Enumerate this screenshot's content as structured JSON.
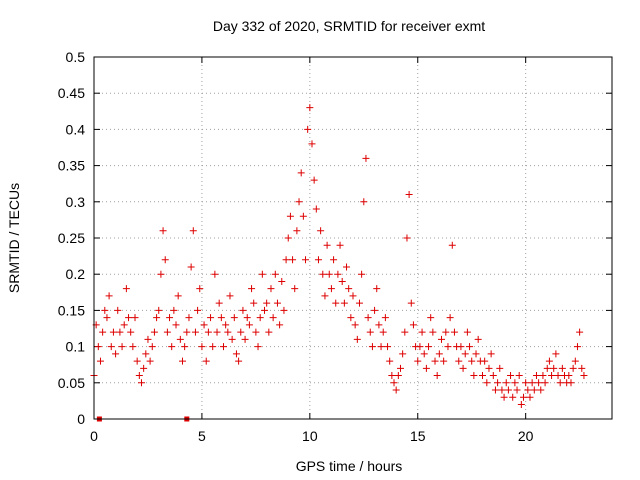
{
  "chart_data": {
    "type": "scatter",
    "title": "Day 332 of 2020, SRMTID for receiver exmt",
    "xlabel": "GPS time / hours",
    "ylabel": "SRMTID / TECUs",
    "xlim": [
      0,
      24
    ],
    "ylim": [
      0,
      0.5
    ],
    "xticks": [
      0,
      5,
      10,
      15,
      20
    ],
    "xtick_labels": [
      "0",
      "5",
      "10",
      "15",
      "20"
    ],
    "yticks": [
      0,
      0.05,
      0.1,
      0.15,
      0.2,
      0.25,
      0.3,
      0.35,
      0.4,
      0.45,
      0.5
    ],
    "ytick_labels": [
      "0",
      "0.05",
      "0.1",
      "0.15",
      "0.2",
      "0.25",
      "0.3",
      "0.35",
      "0.4",
      "0.45",
      "0.5"
    ],
    "grid": true,
    "marker": "+",
    "color": "#dd0000",
    "series": [
      {
        "name": "SRMTID",
        "points": [
          [
            0.0,
            0.06
          ],
          [
            0.1,
            0.13
          ],
          [
            0.2,
            0.1
          ],
          [
            0.3,
            0.08
          ],
          [
            0.4,
            0.12
          ],
          [
            0.5,
            0.15
          ],
          [
            0.6,
            0.14
          ],
          [
            0.7,
            0.17
          ],
          [
            0.8,
            0.1
          ],
          [
            0.9,
            0.12
          ],
          [
            1.0,
            0.09
          ],
          [
            1.1,
            0.15
          ],
          [
            1.2,
            0.12
          ],
          [
            1.3,
            0.1
          ],
          [
            1.4,
            0.13
          ],
          [
            1.5,
            0.18
          ],
          [
            1.6,
            0.14
          ],
          [
            1.7,
            0.12
          ],
          [
            1.8,
            0.1
          ],
          [
            1.9,
            0.14
          ],
          [
            2.0,
            0.08
          ],
          [
            2.1,
            0.06
          ],
          [
            2.2,
            0.05
          ],
          [
            2.3,
            0.07
          ],
          [
            2.4,
            0.09
          ],
          [
            2.5,
            0.11
          ],
          [
            2.6,
            0.08
          ],
          [
            2.7,
            0.1
          ],
          [
            2.8,
            0.12
          ],
          [
            2.9,
            0.14
          ],
          [
            3.0,
            0.15
          ],
          [
            3.1,
            0.2
          ],
          [
            3.2,
            0.26
          ],
          [
            3.3,
            0.22
          ],
          [
            3.4,
            0.12
          ],
          [
            3.5,
            0.14
          ],
          [
            3.6,
            0.1
          ],
          [
            3.7,
            0.15
          ],
          [
            3.8,
            0.13
          ],
          [
            3.9,
            0.17
          ],
          [
            4.0,
            0.11
          ],
          [
            4.1,
            0.08
          ],
          [
            4.2,
            0.1
          ],
          [
            4.3,
            0.12
          ],
          [
            4.4,
            0.14
          ],
          [
            4.5,
            0.21
          ],
          [
            4.6,
            0.26
          ],
          [
            4.7,
            0.12
          ],
          [
            4.8,
            0.15
          ],
          [
            4.9,
            0.18
          ],
          [
            5.0,
            0.1
          ],
          [
            5.1,
            0.13
          ],
          [
            5.2,
            0.08
          ],
          [
            5.3,
            0.12
          ],
          [
            5.4,
            0.14
          ],
          [
            5.5,
            0.1
          ],
          [
            5.6,
            0.2
          ],
          [
            5.7,
            0.12
          ],
          [
            5.8,
            0.16
          ],
          [
            5.9,
            0.14
          ],
          [
            6.0,
            0.1
          ],
          [
            6.1,
            0.13
          ],
          [
            6.2,
            0.12
          ],
          [
            6.3,
            0.17
          ],
          [
            6.4,
            0.11
          ],
          [
            6.5,
            0.14
          ],
          [
            6.6,
            0.09
          ],
          [
            6.7,
            0.08
          ],
          [
            6.8,
            0.12
          ],
          [
            6.9,
            0.15
          ],
          [
            7.0,
            0.11
          ],
          [
            7.1,
            0.14
          ],
          [
            7.2,
            0.13
          ],
          [
            7.3,
            0.18
          ],
          [
            7.4,
            0.16
          ],
          [
            7.5,
            0.12
          ],
          [
            7.6,
            0.1
          ],
          [
            7.7,
            0.14
          ],
          [
            7.8,
            0.2
          ],
          [
            7.9,
            0.15
          ],
          [
            8.0,
            0.16
          ],
          [
            8.1,
            0.12
          ],
          [
            8.2,
            0.18
          ],
          [
            8.3,
            0.14
          ],
          [
            8.4,
            0.2
          ],
          [
            8.5,
            0.16
          ],
          [
            8.6,
            0.13
          ],
          [
            8.7,
            0.19
          ],
          [
            8.8,
            0.15
          ],
          [
            8.9,
            0.22
          ],
          [
            9.0,
            0.25
          ],
          [
            9.1,
            0.28
          ],
          [
            9.2,
            0.22
          ],
          [
            9.3,
            0.18
          ],
          [
            9.4,
            0.26
          ],
          [
            9.5,
            0.3
          ],
          [
            9.6,
            0.34
          ],
          [
            9.7,
            0.28
          ],
          [
            9.8,
            0.22
          ],
          [
            9.9,
            0.4
          ],
          [
            10.0,
            0.43
          ],
          [
            10.1,
            0.38
          ],
          [
            10.2,
            0.33
          ],
          [
            10.3,
            0.29
          ],
          [
            10.4,
            0.22
          ],
          [
            10.5,
            0.26
          ],
          [
            10.6,
            0.2
          ],
          [
            10.7,
            0.17
          ],
          [
            10.8,
            0.24
          ],
          [
            10.9,
            0.2
          ],
          [
            11.0,
            0.18
          ],
          [
            11.1,
            0.22
          ],
          [
            11.2,
            0.16
          ],
          [
            11.3,
            0.2
          ],
          [
            11.4,
            0.24
          ],
          [
            11.5,
            0.19
          ],
          [
            11.6,
            0.16
          ],
          [
            11.7,
            0.21
          ],
          [
            11.8,
            0.18
          ],
          [
            11.9,
            0.14
          ],
          [
            12.0,
            0.17
          ],
          [
            12.1,
            0.13
          ],
          [
            12.2,
            0.11
          ],
          [
            12.3,
            0.16
          ],
          [
            12.4,
            0.2
          ],
          [
            12.5,
            0.3
          ],
          [
            12.6,
            0.36
          ],
          [
            12.7,
            0.14
          ],
          [
            12.8,
            0.12
          ],
          [
            12.9,
            0.1
          ],
          [
            13.0,
            0.15
          ],
          [
            13.1,
            0.18
          ],
          [
            13.2,
            0.13
          ],
          [
            13.3,
            0.1
          ],
          [
            13.4,
            0.12
          ],
          [
            13.5,
            0.14
          ],
          [
            13.6,
            0.1
          ],
          [
            13.7,
            0.08
          ],
          [
            13.8,
            0.06
          ],
          [
            13.9,
            0.05
          ],
          [
            14.0,
            0.04
          ],
          [
            14.1,
            0.06
          ],
          [
            14.2,
            0.07
          ],
          [
            14.3,
            0.09
          ],
          [
            14.4,
            0.12
          ],
          [
            14.5,
            0.25
          ],
          [
            14.6,
            0.31
          ],
          [
            14.7,
            0.16
          ],
          [
            14.8,
            0.13
          ],
          [
            14.9,
            0.1
          ],
          [
            15.0,
            0.08
          ],
          [
            15.1,
            0.1
          ],
          [
            15.2,
            0.12
          ],
          [
            15.3,
            0.09
          ],
          [
            15.4,
            0.07
          ],
          [
            15.5,
            0.1
          ],
          [
            15.6,
            0.14
          ],
          [
            15.7,
            0.12
          ],
          [
            15.8,
            0.08
          ],
          [
            15.9,
            0.06
          ],
          [
            16.0,
            0.09
          ],
          [
            16.1,
            0.11
          ],
          [
            16.2,
            0.08
          ],
          [
            16.3,
            0.12
          ],
          [
            16.4,
            0.1
          ],
          [
            16.5,
            0.14
          ],
          [
            16.6,
            0.24
          ],
          [
            16.7,
            0.12
          ],
          [
            16.8,
            0.1
          ],
          [
            16.9,
            0.08
          ],
          [
            17.0,
            0.1
          ],
          [
            17.1,
            0.07
          ],
          [
            17.2,
            0.09
          ],
          [
            17.3,
            0.12
          ],
          [
            17.4,
            0.1
          ],
          [
            17.5,
            0.08
          ],
          [
            17.6,
            0.06
          ],
          [
            17.7,
            0.09
          ],
          [
            17.8,
            0.11
          ],
          [
            17.9,
            0.08
          ],
          [
            18.0,
            0.06
          ],
          [
            18.1,
            0.08
          ],
          [
            18.2,
            0.05
          ],
          [
            18.3,
            0.07
          ],
          [
            18.4,
            0.09
          ],
          [
            18.5,
            0.06
          ],
          [
            18.6,
            0.04
          ],
          [
            18.7,
            0.05
          ],
          [
            18.8,
            0.07
          ],
          [
            18.9,
            0.04
          ],
          [
            19.0,
            0.03
          ],
          [
            19.1,
            0.05
          ],
          [
            19.2,
            0.04
          ],
          [
            19.3,
            0.06
          ],
          [
            19.4,
            0.03
          ],
          [
            19.5,
            0.05
          ],
          [
            19.6,
            0.04
          ],
          [
            19.7,
            0.06
          ],
          [
            19.8,
            0.02
          ],
          [
            19.9,
            0.03
          ],
          [
            20.0,
            0.05
          ],
          [
            20.1,
            0.04
          ],
          [
            20.2,
            0.03
          ],
          [
            20.3,
            0.05
          ],
          [
            20.4,
            0.04
          ],
          [
            20.5,
            0.06
          ],
          [
            20.6,
            0.05
          ],
          [
            20.7,
            0.04
          ],
          [
            20.8,
            0.06
          ],
          [
            20.9,
            0.05
          ],
          [
            21.0,
            0.07
          ],
          [
            21.1,
            0.08
          ],
          [
            21.2,
            0.06
          ],
          [
            21.3,
            0.07
          ],
          [
            21.4,
            0.09
          ],
          [
            21.5,
            0.06
          ],
          [
            21.6,
            0.05
          ],
          [
            21.7,
            0.07
          ],
          [
            21.8,
            0.06
          ],
          [
            21.9,
            0.05
          ],
          [
            22.0,
            0.06
          ],
          [
            22.1,
            0.05
          ],
          [
            22.2,
            0.07
          ],
          [
            22.3,
            0.08
          ],
          [
            22.4,
            0.1
          ],
          [
            22.5,
            0.12
          ],
          [
            22.6,
            0.07
          ],
          [
            22.7,
            0.06
          ]
        ]
      }
    ],
    "gap_markers": [
      0.25,
      4.3
    ]
  }
}
